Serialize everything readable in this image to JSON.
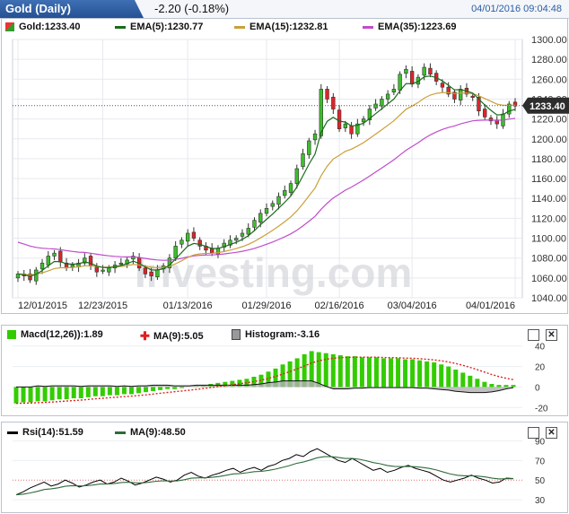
{
  "header": {
    "title": "Gold (Daily)",
    "change": "-2.20 (-0.18%)",
    "datetime": "04/01/2016 09:04:48"
  },
  "price_panel": {
    "legend": [
      {
        "label": "Gold:1233.40",
        "color": "#2e9e2e"
      },
      {
        "label": "EMA(5):1230.77",
        "color": "#1a6b1a"
      },
      {
        "label": "EMA(15):1232.81",
        "color": "#c9a03a"
      },
      {
        "label": "EMA(35):1223.69",
        "color": "#c04ccc"
      }
    ],
    "current_price_tag": "1233.40",
    "watermark": "Investing.com"
  },
  "macd_panel": {
    "legend": [
      {
        "label": "Macd(12,26)):1.89",
        "color": "#33cc00"
      },
      {
        "label": "MA(9):5.05",
        "color": "#e02020"
      },
      {
        "label": "Histogram:-3.16",
        "color": "#999999"
      }
    ],
    "close_label": "✕"
  },
  "rsi_panel": {
    "legend": [
      {
        "label": "Rsi(14):51.59",
        "color": "#000000"
      },
      {
        "label": "MA(9):48.50",
        "color": "#2e6b3a"
      }
    ],
    "close_label": "✕"
  },
  "chart_data": [
    {
      "type": "candlestick",
      "title": "Gold (Daily)",
      "x_tick_labels": [
        "12/01/2015",
        "12/23/2015",
        "01/13/2016",
        "01/29/2016",
        "02/16/2016",
        "03/04/2016",
        "04/01/2016"
      ],
      "y_ticks": [
        1040,
        1060,
        1080,
        1100,
        1120,
        1140,
        1160,
        1180,
        1200,
        1220,
        1240,
        1260,
        1280,
        1300
      ],
      "ylim": [
        1040,
        1300
      ],
      "close": [
        1064,
        1062,
        1058,
        1068,
        1075,
        1082,
        1085,
        1076,
        1070,
        1073,
        1075,
        1080,
        1072,
        1066,
        1068,
        1070,
        1073,
        1075,
        1078,
        1082,
        1070,
        1064,
        1062,
        1068,
        1072,
        1080,
        1092,
        1098,
        1105,
        1100,
        1092,
        1088,
        1085,
        1090,
        1095,
        1098,
        1100,
        1105,
        1110,
        1118,
        1125,
        1130,
        1135,
        1142,
        1148,
        1155,
        1170,
        1185,
        1198,
        1205,
        1250,
        1240,
        1230,
        1210,
        1215,
        1205,
        1215,
        1220,
        1230,
        1235,
        1240,
        1245,
        1250,
        1265,
        1270,
        1255,
        1262,
        1272,
        1265,
        1258,
        1252,
        1245,
        1240,
        1250,
        1245,
        1242,
        1228,
        1222,
        1218,
        1215,
        1225,
        1235,
        1233
      ],
      "series": [
        {
          "name": "EMA(5)",
          "color": "#1a6b1a"
        },
        {
          "name": "EMA(15)",
          "color": "#c9a03a"
        },
        {
          "name": "EMA(35)",
          "color": "#c04ccc"
        }
      ],
      "latest": {
        "close": 1233.4,
        "ema5": 1230.77,
        "ema15": 1232.81,
        "ema35": 1223.69
      }
    },
    {
      "type": "bar",
      "title": "Macd(12,26)",
      "y_ticks": [
        40,
        20,
        0,
        -20
      ],
      "ylim": [
        -25,
        45
      ],
      "macd_values": [
        -16,
        -15,
        -15,
        -14,
        -14,
        -13,
        -12,
        -12,
        -11,
        -11,
        -10,
        -9,
        -9,
        -8,
        -8,
        -7,
        -7,
        -6,
        -5,
        -4,
        -3,
        -2,
        -2,
        -1,
        0,
        1,
        2,
        3,
        4,
        5,
        6,
        7,
        8,
        10,
        12,
        15,
        18,
        22,
        25,
        28,
        32,
        35,
        34,
        33,
        32,
        31,
        30,
        30,
        29,
        29,
        29,
        28,
        28,
        28,
        27,
        27,
        26,
        25,
        24,
        22,
        20,
        17,
        14,
        11,
        8,
        5,
        3,
        2,
        2,
        2
      ],
      "latest": {
        "macd": 1.89,
        "ma9": 5.05,
        "histogram": -3.16
      }
    },
    {
      "type": "line",
      "title": "Rsi(14)",
      "y_ticks": [
        90,
        70,
        50,
        30
      ],
      "ylim": [
        20,
        95
      ],
      "rsi_values": [
        35,
        38,
        42,
        45,
        48,
        44,
        46,
        50,
        47,
        43,
        45,
        48,
        50,
        46,
        48,
        52,
        49,
        45,
        47,
        50,
        53,
        51,
        48,
        50,
        55,
        58,
        54,
        52,
        55,
        57,
        60,
        62,
        58,
        61,
        63,
        60,
        64,
        66,
        70,
        72,
        76,
        74,
        79,
        82,
        78,
        74,
        70,
        68,
        72,
        68,
        64,
        60,
        62,
        58,
        60,
        63,
        65,
        62,
        60,
        58,
        54,
        50,
        48,
        50,
        52,
        55,
        52,
        50,
        47,
        48,
        52,
        51.59
      ],
      "latest": {
        "rsi": 51.59,
        "ma9": 48.5
      }
    }
  ]
}
